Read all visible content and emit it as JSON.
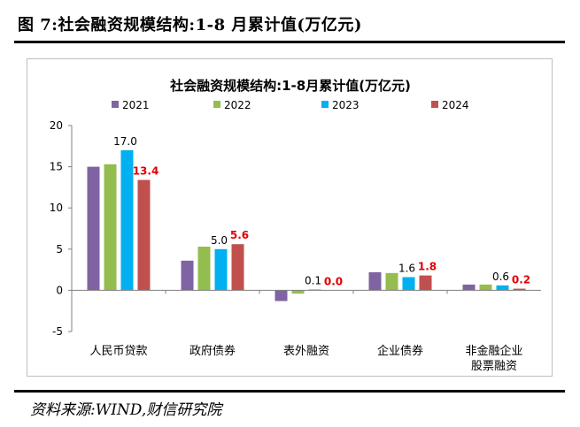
{
  "figure": {
    "label": "图 7:社会融资规模结构:1-8 月累计值(万亿元)",
    "source": "资料来源:WIND,财信研究院"
  },
  "colors": {
    "2021": "#7f63a3",
    "2022": "#93bd4e",
    "2023": "#00b0f0",
    "2024": "#c0504d",
    "label_highlight": "#e00000"
  },
  "chart_data": {
    "type": "bar",
    "title": "社会融资规模结构:1-8月累计值(万亿元)",
    "xlabel": "",
    "ylabel": "",
    "ylim": [
      -5,
      20
    ],
    "yticks": [
      -5,
      0,
      5,
      10,
      15,
      20
    ],
    "grid": false,
    "legend_position": "top",
    "categories": [
      "人民币贷款",
      "政府债券",
      "表外融资",
      "企业债券",
      "非金融企业股票融资"
    ],
    "category_labels": [
      [
        "人民币贷款"
      ],
      [
        "政府债券"
      ],
      [
        "表外融资"
      ],
      [
        "企业债券"
      ],
      [
        "非金融企业",
        "股票融资"
      ]
    ],
    "series": [
      {
        "name": "2021",
        "values": [
          15.0,
          3.6,
          -1.3,
          2.2,
          0.7
        ]
      },
      {
        "name": "2022",
        "values": [
          15.3,
          5.3,
          -0.4,
          2.1,
          0.7
        ]
      },
      {
        "name": "2023",
        "values": [
          17.0,
          5.0,
          0.1,
          1.6,
          0.6
        ]
      },
      {
        "name": "2024",
        "values": [
          13.4,
          5.6,
          0.0,
          1.8,
          0.2
        ]
      }
    ],
    "data_labels": [
      {
        "series": "2023",
        "values": [
          "17.0",
          "5.0",
          "0.1",
          "1.6",
          "0.6"
        ]
      },
      {
        "series": "2024",
        "values": [
          "13.4",
          "5.6",
          "0.0",
          "1.8",
          "0.2"
        ],
        "highlight": true
      }
    ]
  }
}
